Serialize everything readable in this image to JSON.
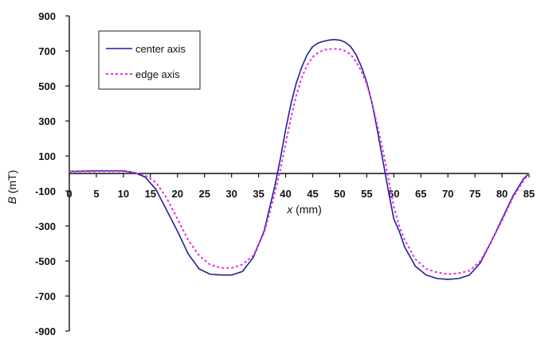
{
  "chart_data": {
    "type": "line",
    "title": "",
    "xlabel": {
      "var": "x",
      "unit": " (mm)"
    },
    "ylabel": {
      "var": "B",
      "unit": " (mT)"
    },
    "xlim": [
      0,
      85
    ],
    "ylim": [
      -900,
      900
    ],
    "x_ticks": [
      0,
      5,
      10,
      15,
      20,
      25,
      30,
      35,
      40,
      45,
      50,
      55,
      60,
      65,
      70,
      75,
      80,
      85
    ],
    "y_ticks": [
      900,
      700,
      500,
      300,
      100,
      -100,
      -300,
      -500,
      -700,
      -900
    ],
    "grid": false,
    "legend_position": "top-left",
    "series": [
      {
        "name": "center axis",
        "color": "#1f1f9a",
        "style": "solid",
        "x": [
          0,
          5,
          10,
          12,
          14,
          16,
          18,
          20,
          22,
          24,
          26,
          28,
          30,
          32,
          34,
          36,
          37,
          38,
          39,
          40,
          41,
          42,
          43,
          44,
          45,
          46,
          47,
          48,
          49,
          50,
          51,
          52,
          53,
          54,
          55,
          56,
          57,
          58,
          59,
          60,
          61,
          62,
          64,
          66,
          68,
          70,
          72,
          74,
          76,
          78,
          80,
          82,
          84,
          85
        ],
        "y": [
          12,
          15,
          15,
          5,
          -20,
          -90,
          -210,
          -330,
          -460,
          -545,
          -575,
          -580,
          -580,
          -560,
          -480,
          -330,
          -200,
          -70,
          80,
          250,
          400,
          520,
          610,
          680,
          725,
          745,
          755,
          762,
          765,
          762,
          750,
          725,
          680,
          610,
          520,
          400,
          240,
          70,
          -100,
          -260,
          -330,
          -420,
          -530,
          -580,
          -600,
          -605,
          -600,
          -580,
          -510,
          -390,
          -260,
          -130,
          -30,
          0
        ]
      },
      {
        "name": "edge axis",
        "color": "#e62ee6",
        "style": "dotted",
        "x": [
          0,
          5,
          10,
          12,
          14,
          16,
          18,
          20,
          22,
          24,
          26,
          28,
          30,
          32,
          34,
          36,
          37,
          38,
          39,
          40,
          41,
          42,
          43,
          44,
          45,
          46,
          47,
          48,
          49,
          50,
          51,
          52,
          53,
          54,
          55,
          56,
          57,
          58,
          59,
          60,
          61,
          62,
          64,
          66,
          68,
          70,
          72,
          74,
          76,
          78,
          80,
          82,
          84,
          85
        ],
        "y": [
          10,
          12,
          12,
          5,
          -10,
          -50,
          -140,
          -260,
          -380,
          -470,
          -520,
          -540,
          -540,
          -520,
          -470,
          -340,
          -230,
          -110,
          20,
          170,
          320,
          450,
          550,
          620,
          665,
          690,
          705,
          710,
          712,
          710,
          700,
          680,
          640,
          585,
          510,
          400,
          270,
          130,
          -30,
          -190,
          -300,
          -380,
          -490,
          -545,
          -565,
          -575,
          -570,
          -555,
          -500,
          -390,
          -270,
          -140,
          -40,
          0
        ]
      }
    ]
  }
}
